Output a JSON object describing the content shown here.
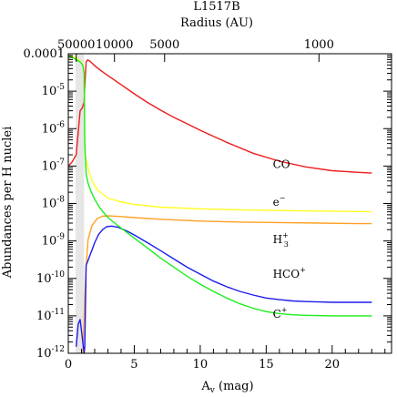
{
  "chart_data": {
    "type": "line",
    "title": "L1517B",
    "xlabel": "A",
    "xlabel_sub": "v",
    "xlabel_unit": " (mag)",
    "ylabel": "Abundances per H nuclei",
    "top_axis_label": "Radius (AU)",
    "xlim": [
      0,
      24.5
    ],
    "ylim": [
      1e-12,
      0.0001
    ],
    "yscale": "log",
    "x_ticks": [
      0,
      5,
      10,
      15,
      20
    ],
    "x_tick_labels": [
      "0",
      "5",
      "10",
      "15",
      "20"
    ],
    "y_ticks": [
      1e-12,
      1e-11,
      1e-10,
      1e-09,
      1e-08,
      1e-07,
      1e-06,
      1e-05,
      0.0001
    ],
    "y_tick_labels": [
      {
        "base": "10",
        "exp": "-12",
        "text": ""
      },
      {
        "base": "10",
        "exp": "-11",
        "text": ""
      },
      {
        "base": "10",
        "exp": "-10",
        "text": ""
      },
      {
        "base": "10",
        "exp": "-9",
        "text": ""
      },
      {
        "base": "10",
        "exp": "-8",
        "text": ""
      },
      {
        "base": "10",
        "exp": "-7",
        "text": ""
      },
      {
        "base": "10",
        "exp": "-6",
        "text": ""
      },
      {
        "base": "10",
        "exp": "-5",
        "text": ""
      },
      {
        "base": "",
        "exp": "",
        "text": "0.0001"
      }
    ],
    "top_ticks": [
      {
        "av": 0.6,
        "label": "50000"
      },
      {
        "av": 3.5,
        "label": "10000"
      },
      {
        "av": 7.3,
        "label": "5000"
      },
      {
        "av": 19.0,
        "label": "1000"
      }
    ],
    "grid": false,
    "shaded_region": [
      0.55,
      1.2
    ],
    "series": [
      {
        "name": "CO",
        "label": {
          "main": "CO",
          "sup": "",
          "sub": ""
        },
        "label_at": [
          15.5,
          1.1e-07
        ],
        "color": "#ee1c1c",
        "x": [
          0.0,
          0.3,
          0.6,
          0.9,
          1.05,
          1.1,
          1.2,
          1.25,
          1.35,
          1.45,
          1.6,
          1.8,
          2.1,
          2.5,
          3.0,
          4.0,
          5.0,
          6.0,
          7.0,
          8.0,
          9.0,
          10.0,
          12.0,
          14.0,
          16.0,
          18.0,
          20.0,
          22.0,
          23.0
        ],
        "y": [
          1e-07,
          1.3e-07,
          2e-07,
          3e-06,
          3.5e-06,
          4e-06,
          5e-06,
          1.3e-05,
          6e-05,
          6.8e-05,
          6.5e-05,
          5.6e-05,
          4.5e-05,
          3.5e-05,
          2.6e-05,
          1.5e-05,
          8.5e-06,
          5e-06,
          3.1e-06,
          2e-06,
          1.35e-06,
          9e-07,
          4.3e-07,
          2.2e-07,
          1.35e-07,
          9.5e-08,
          7.5e-08,
          6.8e-08,
          6.5e-08
        ]
      },
      {
        "name": "e-",
        "label": {
          "main": "e",
          "sup": "−",
          "sub": ""
        },
        "label_at": [
          15.5,
          1.1e-08
        ],
        "color": "#ffff22",
        "x": [
          0.0,
          0.5,
          0.9,
          1.1,
          1.2,
          1.25,
          1.35,
          1.5,
          1.8,
          2.2,
          3.0,
          4.0,
          5.0,
          7.0,
          10.0,
          13.0,
          16.0,
          19.0,
          22.0,
          23.0
        ],
        "y": [
          9e-05,
          8e-05,
          6.5e-05,
          5e-05,
          3e-05,
          2e-07,
          1.5e-07,
          9e-08,
          4e-08,
          2.3e-08,
          1.4e-08,
          1.1e-08,
          9.5e-09,
          8e-09,
          7.2e-09,
          6.8e-09,
          6.5e-09,
          6.3e-09,
          6.1e-09,
          6e-09
        ]
      },
      {
        "name": "H3+",
        "label": {
          "main": "H",
          "sup": "+",
          "sub": "3"
        },
        "label_at": [
          15.5,
          1.1e-09
        ],
        "color": "#ffa026",
        "x": [
          1.1,
          1.2,
          1.25,
          1.35,
          1.5,
          1.8,
          2.2,
          2.6,
          3.0,
          3.5,
          4.0,
          5.0,
          7.0,
          10.0,
          13.0,
          16.0,
          19.0,
          22.0,
          23.0
        ],
        "y": [
          1e-12,
          8e-12,
          3e-11,
          2e-10,
          1.1e-09,
          2.6e-09,
          4e-09,
          4.6e-09,
          4.7e-09,
          4.6e-09,
          4.5e-09,
          4.2e-09,
          3.8e-09,
          3.4e-09,
          3.2e-09,
          3.1e-09,
          3e-09,
          2.9e-09,
          2.9e-09
        ]
      },
      {
        "name": "HCO+",
        "label": {
          "main": "HCO",
          "sup": "+",
          "sub": ""
        },
        "label_at": [
          15.5,
          1.3e-10
        ],
        "color": "#1c1cee",
        "x": [
          0.6,
          0.75,
          0.9,
          1.0,
          1.1,
          1.2,
          1.25,
          1.35,
          1.45,
          1.6,
          1.8,
          2.0,
          2.3,
          2.6,
          2.9,
          3.3,
          3.8,
          4.5,
          5.0,
          6.0,
          7.0,
          8.0,
          9.0,
          10.0,
          11.0,
          12.0,
          13.0,
          14.0,
          15.0,
          16.0,
          17.0,
          18.0,
          19.0,
          20.0,
          21.0,
          22.0,
          23.0
        ],
        "y": [
          1.5e-12,
          6e-12,
          8e-12,
          4e-12,
          2e-12,
          1e-12,
          1.5e-12,
          2.3e-10,
          2.7e-10,
          3.8e-10,
          5.8e-10,
          9e-10,
          1.5e-09,
          2e-09,
          2.4e-09,
          2.5e-09,
          2.3e-09,
          1.8e-09,
          1.45e-09,
          9e-10,
          5.5e-10,
          3.3e-10,
          2e-10,
          1.3e-10,
          8.5e-11,
          6e-11,
          4.5e-11,
          3.6e-11,
          3e-11,
          2.7e-11,
          2.5e-11,
          2.4e-11,
          2.35e-11,
          2.3e-11,
          2.3e-11,
          2.3e-11,
          2.3e-11
        ]
      },
      {
        "name": "C+",
        "label": {
          "main": "C",
          "sup": "+",
          "sub": ""
        },
        "label_at": [
          15.5,
          1.1e-11
        ],
        "color": "#1cee1c",
        "x": [
          0.0,
          0.3,
          0.6,
          0.9,
          1.1,
          1.2,
          1.25,
          1.35,
          1.5,
          1.7,
          2.0,
          2.4,
          3.0,
          4.0,
          5.0,
          6.0,
          7.0,
          8.0,
          9.0,
          10.0,
          11.0,
          12.0,
          13.0,
          14.0,
          15.0,
          16.0,
          17.0,
          18.0,
          20.0,
          22.0,
          23.0
        ],
        "y": [
          9e-05,
          8e-05,
          7e-05,
          6e-05,
          5e-05,
          3e-05,
          4e-07,
          6e-08,
          3.5e-08,
          2.2e-08,
          1.3e-08,
          7.5e-09,
          4.2e-09,
          2.2e-09,
          1.2e-09,
          6.5e-10,
          3.5e-10,
          2e-10,
          1.15e-10,
          7e-11,
          4.5e-11,
          3e-11,
          2.1e-11,
          1.6e-11,
          1.3e-11,
          1.15e-11,
          1.07e-11,
          1.03e-11,
          1e-11,
          1e-11,
          1e-11
        ]
      }
    ]
  }
}
